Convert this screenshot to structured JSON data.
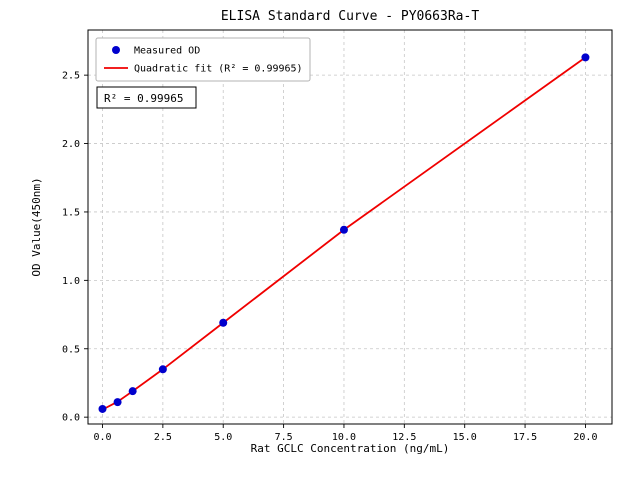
{
  "chart_data": {
    "type": "scatter",
    "title": "ELISA Standard Curve - PY0663Ra-T",
    "xlabel": "Rat GCLC Concentration (ng/mL)",
    "ylabel": "OD Value(450nm)",
    "xlim": [
      -0.6,
      21.1
    ],
    "ylim": [
      -0.05,
      2.83
    ],
    "x_ticks": [
      0.0,
      2.5,
      5.0,
      7.5,
      10.0,
      12.5,
      15.0,
      17.5,
      20.0
    ],
    "x_tick_labels": [
      "0.0",
      "2.5",
      "5.0",
      "7.5",
      "10.0",
      "12.5",
      "15.0",
      "17.5",
      "20.0"
    ],
    "y_ticks": [
      0.0,
      0.5,
      1.0,
      1.5,
      2.0,
      2.5
    ],
    "y_tick_labels": [
      "0.0",
      "0.5",
      "1.0",
      "1.5",
      "2.0",
      "2.5"
    ],
    "grid": true,
    "series": [
      {
        "name": "Measured OD",
        "type": "scatter",
        "color": "#0000cd",
        "x": [
          0,
          0.625,
          1.25,
          2.5,
          5,
          10,
          20
        ],
        "y": [
          0.06,
          0.11,
          0.19,
          0.35,
          0.69,
          1.37,
          2.63
        ]
      },
      {
        "name": "Quadratic fit (R² = 0.99965)",
        "type": "line",
        "color": "#f00000",
        "x": [
          0,
          0.625,
          1.25,
          2.5,
          5,
          10,
          20
        ],
        "y": [
          0.055,
          0.113,
          0.19,
          0.35,
          0.69,
          1.37,
          2.63
        ]
      }
    ],
    "legend": {
      "position": "upper left",
      "items": [
        "Measured OD",
        "Quadratic fit (R² = 0.99965)"
      ]
    },
    "annotation": "R² = 0.99965",
    "r_squared": 0.99965
  }
}
